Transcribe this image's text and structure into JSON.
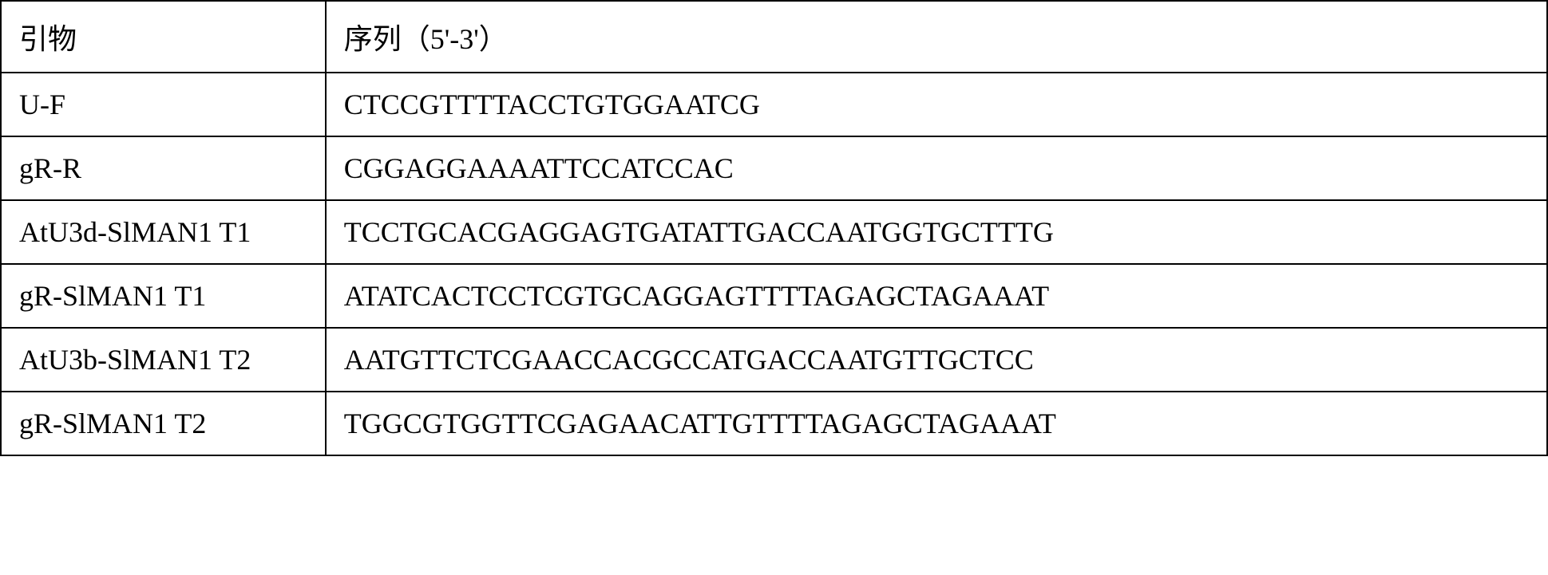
{
  "table": {
    "header": {
      "primer": "引物",
      "sequence": "序列（5'-3'）"
    },
    "rows": [
      {
        "primer": "U-F",
        "sequence": "CTCCGTTTTACCTGTGGAATCG"
      },
      {
        "primer": "gR-R",
        "sequence": "CGGAGGAAAATTCCATCCAC"
      },
      {
        "primer": "AtU3d-SlMAN1 T1",
        "sequence": "TCCTGCACGAGGAGTGATATTGACCAATGGTGCTTTG"
      },
      {
        "primer": "gR-SlMAN1 T1",
        "sequence": "ATATCACTCCTCGTGCAGGAGTTTTAGAGCTAGAAAT"
      },
      {
        "primer": "AtU3b-SlMAN1 T2",
        "sequence": "AATGTTCTCGAACCACGCCATGACCAATGTTGCTCC"
      },
      {
        "primer": "gR-SlMAN1 T2",
        "sequence": "TGGCGTGGTTCGAGAACATTGTTTTAGAGCTAGAAAT"
      }
    ],
    "border_color": "#000000",
    "text_color": "#000000",
    "background_color": "#ffffff",
    "font_size": 36,
    "col_widths": [
      "21%",
      "79%"
    ]
  }
}
